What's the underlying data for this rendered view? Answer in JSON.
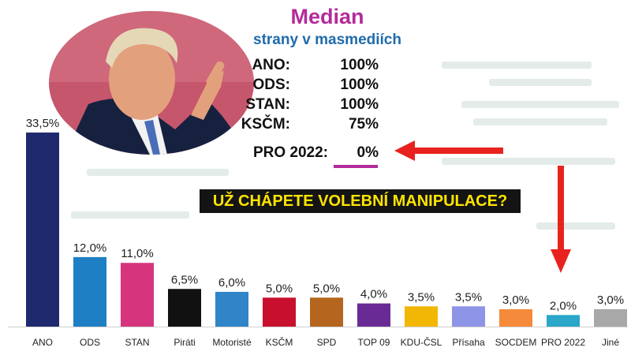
{
  "header": {
    "title": "Median",
    "subtitle": "strany v masmediích",
    "stats": [
      {
        "name": "ANO:",
        "value": "100%"
      },
      {
        "name": "ODS:",
        "value": "100%"
      },
      {
        "name": "STAN:",
        "value": "100%"
      },
      {
        "name": "KSČM:",
        "value": "75%"
      },
      {
        "name": "PRO 2022:",
        "value": "0%"
      }
    ]
  },
  "banner_text": "UŽ CHÁPETE VOLEBNÍ MANIPULACE?",
  "colors": {
    "title": "#b42a9b",
    "subtitle": "#1f6bab",
    "banner_bg": "#141414",
    "banner_text": "#ffe500",
    "arrow": "#e8231f"
  },
  "chart_data": {
    "type": "bar",
    "categories": [
      "ANO",
      "ODS",
      "STAN",
      "Piráti",
      "Motoristé",
      "KSČM",
      "SPD",
      "TOP 09",
      "KDU-ČSL",
      "Přísaha",
      "SOCDEM",
      "PRO 2022",
      "Jiné"
    ],
    "values": [
      33.5,
      12.0,
      11.0,
      6.5,
      6.0,
      5.0,
      5.0,
      4.0,
      3.5,
      3.5,
      3.0,
      2.0,
      3.0
    ],
    "value_labels": [
      "33,5%",
      "12,0%",
      "11,0%",
      "6,5%",
      "6,0%",
      "5,0%",
      "5,0%",
      "4,0%",
      "3,5%",
      "3,5%",
      "3,0%",
      "2,0%",
      "3,0%"
    ],
    "colors": [
      "#1f2a6e",
      "#1f7fc4",
      "#d6357e",
      "#111111",
      "#2f85c8",
      "#c8102e",
      "#b5651d",
      "#6a2a96",
      "#f2b705",
      "#8e94e6",
      "#f58a3b",
      "#2aa7c9",
      "#a8a8a8"
    ],
    "title": "",
    "xlabel": "",
    "ylabel": "",
    "ylim": [
      0,
      33.5
    ]
  }
}
